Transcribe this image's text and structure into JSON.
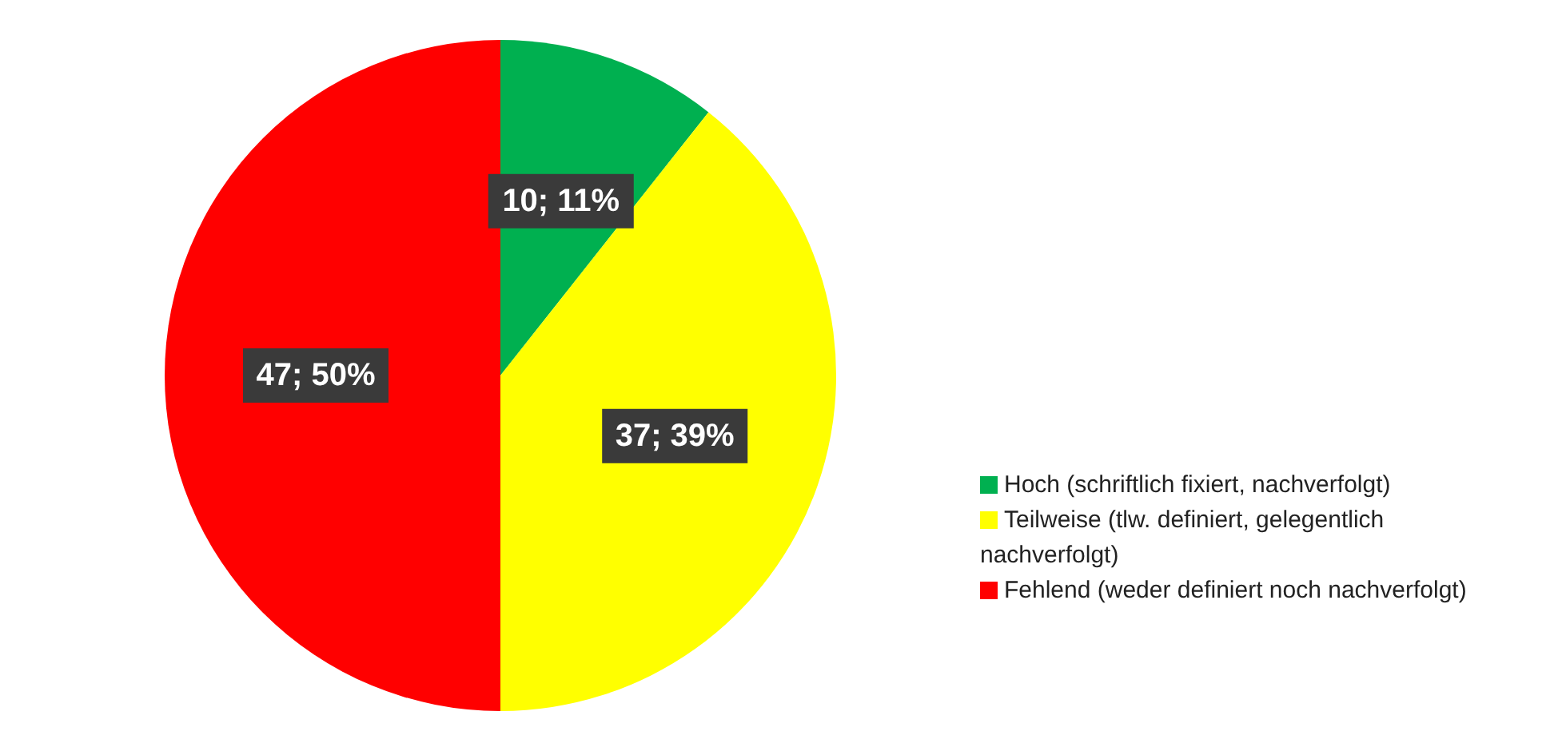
{
  "chart_data": {
    "type": "pie",
    "categories": [
      "Hoch (schriftlich fixiert, nachverfolgt)",
      "Teilweise (tlw. definiert, gelegentlich nachverfolgt)",
      "Fehlend (weder definiert noch nachverfolgt)"
    ],
    "values": [
      10,
      37,
      47
    ],
    "colors": [
      "#00b050",
      "#ffff00",
      "#ff0000"
    ],
    "value_labels": [
      "10; 11%",
      "37; 39%",
      "47; 50%"
    ],
    "legend": "right"
  }
}
